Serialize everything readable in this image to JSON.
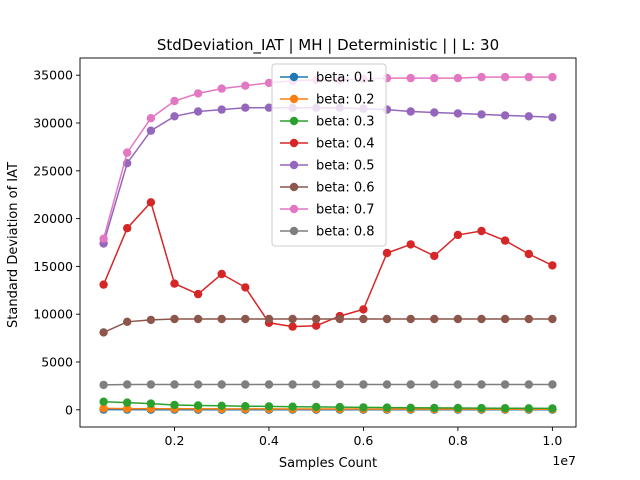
{
  "chart_data": {
    "type": "line",
    "title": "StdDeviation_IAT  | MH | Deterministic |  | L: 30",
    "xlabel": "Samples Count",
    "ylabel": "Standard Deviation of IAT",
    "x_offset_label": "1e7",
    "xlim": [
      0,
      1.05
    ],
    "ylim": [
      -1800,
      36800
    ],
    "x_ticks": [
      0.2,
      0.4,
      0.6,
      0.8,
      1.0
    ],
    "x_tick_labels": [
      "0.2",
      "0.4",
      "0.6",
      "0.8",
      "1.0"
    ],
    "y_ticks": [
      0,
      5000,
      10000,
      15000,
      20000,
      25000,
      30000,
      35000
    ],
    "y_tick_labels": [
      "0",
      "5000",
      "10000",
      "15000",
      "20000",
      "25000",
      "30000",
      "35000"
    ],
    "grid": false,
    "legend_position": "upper-center",
    "x": [
      0.05,
      0.1,
      0.15,
      0.2,
      0.25,
      0.3,
      0.35,
      0.4,
      0.45,
      0.5,
      0.55,
      0.6,
      0.65,
      0.7,
      0.75,
      0.8,
      0.85,
      0.9,
      0.95,
      1.0
    ],
    "series": [
      {
        "name": "beta: 0.1",
        "color": "#1f77b4",
        "values": [
          20,
          15,
          12,
          10,
          10,
          10,
          10,
          10,
          10,
          10,
          10,
          10,
          10,
          10,
          10,
          10,
          10,
          10,
          10,
          10
        ]
      },
      {
        "name": "beta: 0.2",
        "color": "#ff7f0e",
        "values": [
          150,
          130,
          110,
          100,
          100,
          90,
          90,
          90,
          80,
          80,
          80,
          80,
          70,
          70,
          70,
          70,
          70,
          60,
          60,
          60
        ]
      },
      {
        "name": "beta: 0.3",
        "color": "#2ca02c",
        "values": [
          850,
          750,
          650,
          500,
          450,
          420,
          380,
          350,
          320,
          300,
          280,
          250,
          230,
          210,
          200,
          190,
          180,
          170,
          160,
          150
        ]
      },
      {
        "name": "beta: 0.4",
        "color": "#d62728",
        "values": [
          13100,
          19000,
          21700,
          13200,
          12100,
          14200,
          12800,
          9100,
          8700,
          8800,
          9800,
          10500,
          16400,
          17300,
          16100,
          18300,
          18700,
          17700,
          16300,
          15100
        ]
      },
      {
        "name": "beta: 0.5",
        "color": "#9467bd",
        "values": [
          17400,
          25800,
          29200,
          30700,
          31200,
          31400,
          31600,
          31600,
          31600,
          31600,
          31600,
          31500,
          31400,
          31200,
          31100,
          31000,
          30900,
          30800,
          30700,
          30600
        ]
      },
      {
        "name": "beta: 0.6",
        "color": "#8c564b",
        "values": [
          8100,
          9200,
          9400,
          9500,
          9500,
          9500,
          9500,
          9500,
          9500,
          9500,
          9500,
          9500,
          9500,
          9500,
          9500,
          9500,
          9500,
          9500,
          9500,
          9500
        ]
      },
      {
        "name": "beta: 0.7",
        "color": "#e377c2",
        "values": [
          17900,
          26900,
          30500,
          32300,
          33100,
          33600,
          33900,
          34200,
          34400,
          34500,
          34500,
          34600,
          34700,
          34700,
          34700,
          34700,
          34800,
          34800,
          34800,
          34800
        ]
      },
      {
        "name": "beta: 0.8",
        "color": "#7f7f7f",
        "values": [
          2600,
          2650,
          2650,
          2650,
          2650,
          2650,
          2650,
          2650,
          2650,
          2650,
          2650,
          2650,
          2650,
          2650,
          2650,
          2650,
          2650,
          2650,
          2650,
          2650
        ]
      }
    ]
  }
}
